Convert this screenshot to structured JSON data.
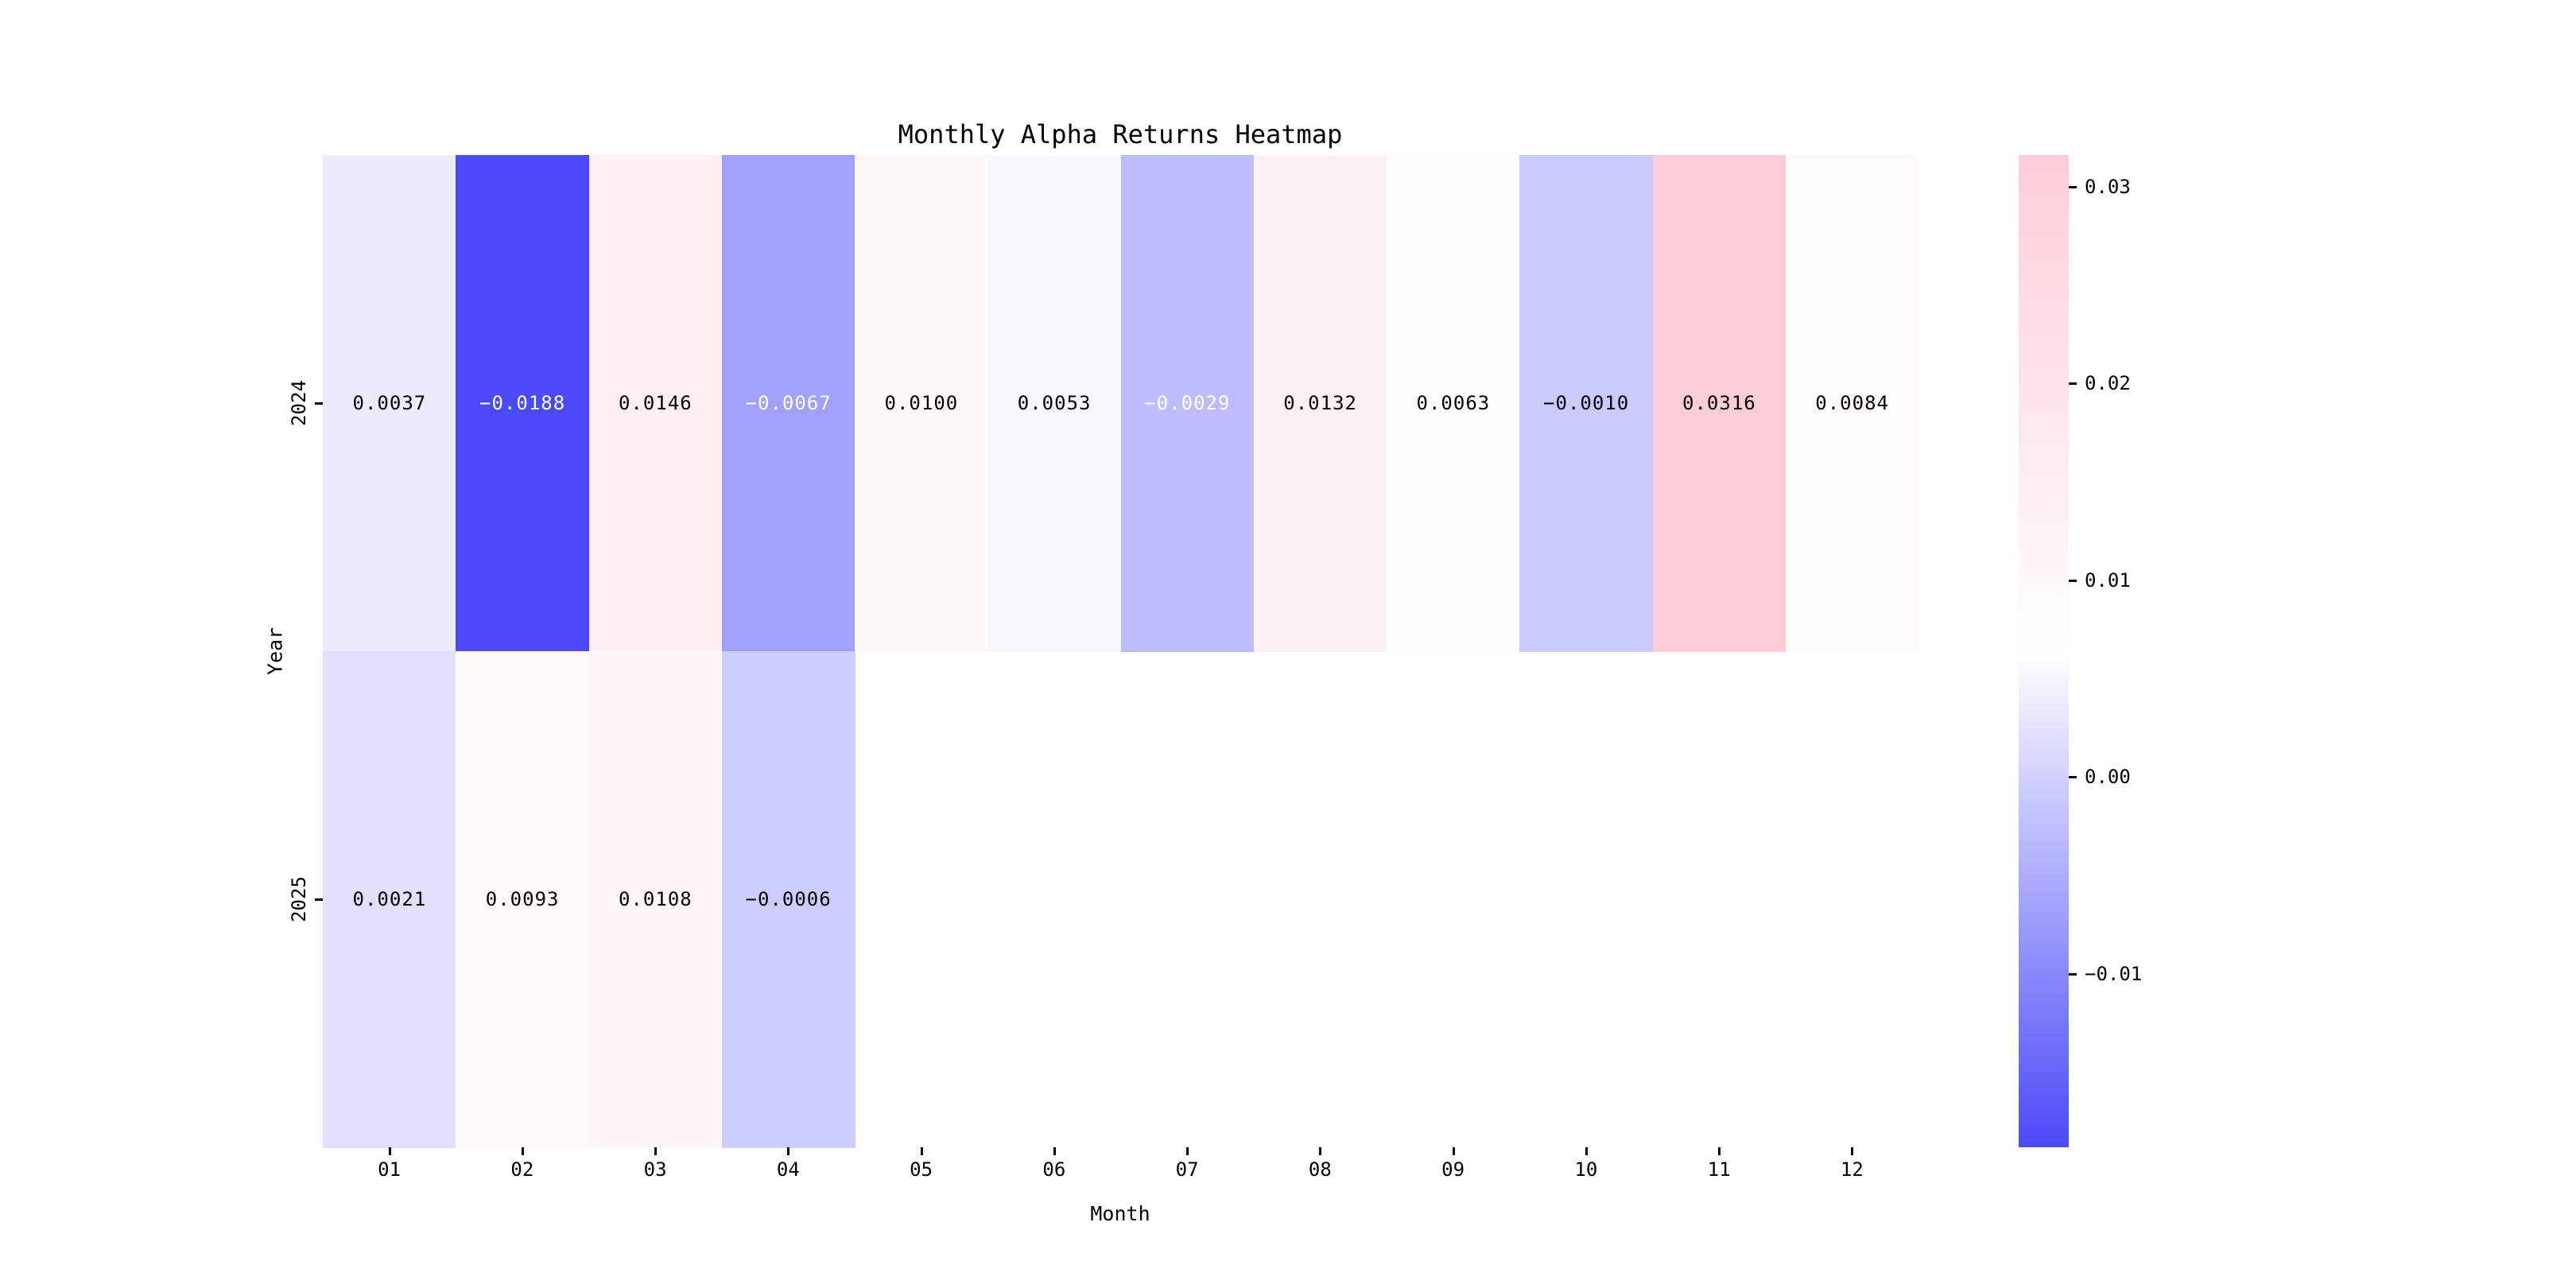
{
  "chart_data": {
    "type": "heatmap",
    "title": "Monthly Alpha Returns Heatmap",
    "xlabel": "Month",
    "ylabel": "Year",
    "x_categories": [
      "01",
      "02",
      "03",
      "04",
      "05",
      "06",
      "07",
      "08",
      "09",
      "10",
      "11",
      "12"
    ],
    "y_categories": [
      "2024",
      "2025"
    ],
    "series": [
      {
        "name": "2024",
        "values": [
          0.0037,
          -0.0188,
          0.0146,
          -0.0067,
          0.01,
          0.0053,
          -0.0029,
          0.0132,
          0.0063,
          -0.001,
          0.0316,
          0.0084
        ]
      },
      {
        "name": "2025",
        "values": [
          0.0021,
          0.0093,
          0.0108,
          -0.0006,
          null,
          null,
          null,
          null,
          null,
          null,
          null,
          null
        ]
      }
    ],
    "vmin": -0.0188,
    "vmax": 0.0316,
    "grid": false,
    "legend": false,
    "colormap": {
      "low": "#4b4af8",
      "mid": "#ffffff",
      "high": "#fdcdd7"
    },
    "cells": [
      {
        "row": "2024",
        "col": "01",
        "label": "0.0037",
        "bg": "#ecebfe",
        "fg": "#000000"
      },
      {
        "row": "2024",
        "col": "02",
        "label": "−0.0188",
        "bg": "#4b4af8",
        "fg": "#ffffff"
      },
      {
        "row": "2024",
        "col": "03",
        "label": "0.0146",
        "bg": "#feeff2",
        "fg": "#000000"
      },
      {
        "row": "2024",
        "col": "04",
        "label": "−0.0067",
        "bg": "#a1a1fb",
        "fg": "#ffffff"
      },
      {
        "row": "2024",
        "col": "05",
        "label": "0.0100",
        "bg": "#fff8f9",
        "fg": "#000000"
      },
      {
        "row": "2024",
        "col": "06",
        "label": "0.0053",
        "bg": "#f7f7ff",
        "fg": "#000000"
      },
      {
        "row": "2024",
        "col": "07",
        "label": "−0.0029",
        "bg": "#bdbcfc",
        "fg": "#ffffff"
      },
      {
        "row": "2024",
        "col": "08",
        "label": "0.0132",
        "bg": "#fef1f4",
        "fg": "#000000"
      },
      {
        "row": "2024",
        "col": "09",
        "label": "0.0063",
        "bg": "#fefeff",
        "fg": "#000000"
      },
      {
        "row": "2024",
        "col": "10",
        "label": "−0.0010",
        "bg": "#cacafd",
        "fg": "#000000"
      },
      {
        "row": "2024",
        "col": "11",
        "label": "0.0316",
        "bg": "#fdcdd7",
        "fg": "#000000"
      },
      {
        "row": "2024",
        "col": "12",
        "label": "0.0084",
        "bg": "#fffbfc",
        "fg": "#000000"
      },
      {
        "row": "2025",
        "col": "01",
        "label": "0.0021",
        "bg": "#e0e0fe",
        "fg": "#000000"
      },
      {
        "row": "2025",
        "col": "02",
        "label": "0.0093",
        "bg": "#fff9fa",
        "fg": "#000000"
      },
      {
        "row": "2025",
        "col": "03",
        "label": "0.0108",
        "bg": "#fff6f8",
        "fg": "#000000"
      },
      {
        "row": "2025",
        "col": "04",
        "label": "−0.0006",
        "bg": "#cdcdfd",
        "fg": "#000000"
      }
    ],
    "colorbar": {
      "ticks": [
        {
          "value": 0.03,
          "label": "0.03"
        },
        {
          "value": 0.02,
          "label": "0.02"
        },
        {
          "value": 0.01,
          "label": "0.01"
        },
        {
          "value": 0.0,
          "label": "0.00"
        },
        {
          "value": -0.01,
          "label": "−0.01"
        }
      ]
    }
  }
}
